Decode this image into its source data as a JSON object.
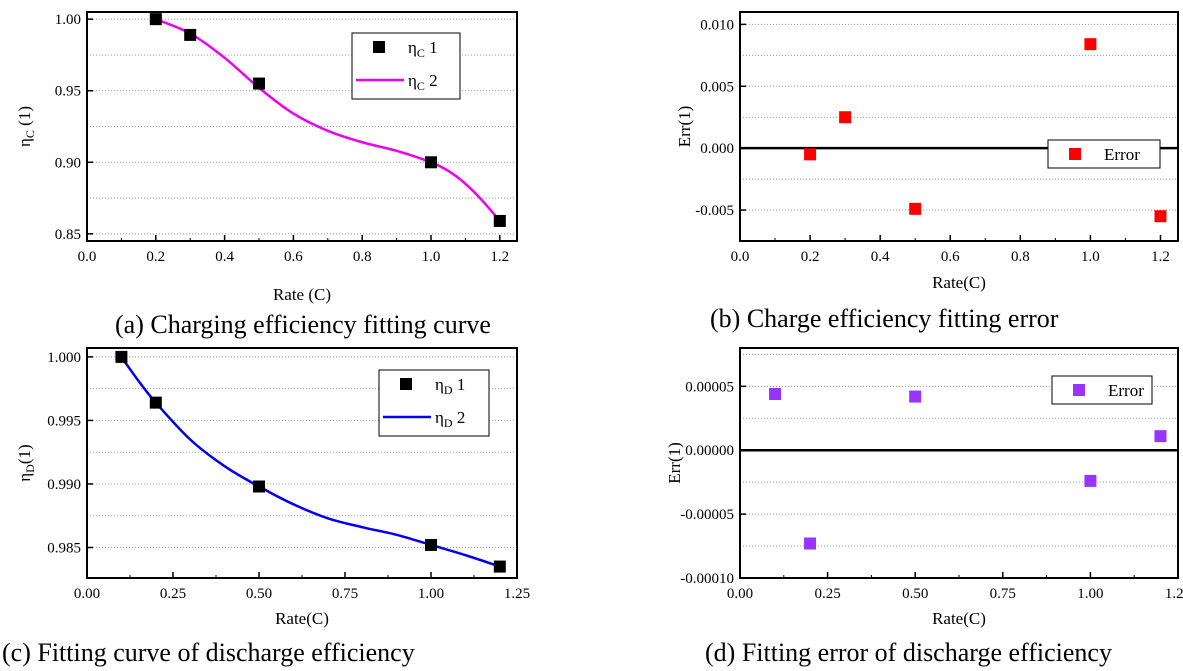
{
  "charts": [
    {
      "caption": "(a) Charging efficiency fitting curve",
      "chart_data": {
        "type": "scatter",
        "title": "",
        "xlabel": "Rate (C)",
        "ylabel_main": "η",
        "ylabel_sub": "C",
        "ylabel_suffix": " (1)",
        "xlim": [
          0.0,
          1.25
        ],
        "ylim": [
          0.845,
          1.005
        ],
        "xticks": [
          "0.0",
          "0.2",
          "0.4",
          "0.6",
          "0.8",
          "1.0",
          "1.2"
        ],
        "xtick_values": [
          0.0,
          0.2,
          0.4,
          0.6,
          0.8,
          1.0,
          1.2
        ],
        "yticks": [
          "0.85",
          "0.90",
          "0.95",
          "1.00"
        ],
        "ytick_values": [
          0.85,
          0.9,
          0.95,
          1.0
        ],
        "grid": "horizontal dotted",
        "legend_position": "top-right",
        "series": [
          {
            "name_main": "η",
            "name_sub": "C",
            "name_suffix": " 1",
            "kind": "markers",
            "color": "#000000",
            "x": [
              0.2,
              0.3,
              0.5,
              1.0,
              1.2
            ],
            "y": [
              1.0,
              0.989,
              0.955,
              0.9,
              0.859
            ]
          },
          {
            "name_main": "η",
            "name_sub": "C",
            "name_suffix": " 2",
            "kind": "line",
            "color": "#ee00ee",
            "x": [
              0.2,
              0.3,
              0.4,
              0.5,
              0.6,
              0.7,
              0.8,
              0.9,
              1.0,
              1.05,
              1.1,
              1.15,
              1.2
            ],
            "y": [
              1.0,
              0.99,
              0.973,
              0.952,
              0.934,
              0.922,
              0.914,
              0.908,
              0.9,
              0.894,
              0.885,
              0.873,
              0.859
            ]
          }
        ]
      }
    },
    {
      "caption": "(b) Charge efficiency fitting error",
      "chart_data": {
        "type": "scatter",
        "title": "",
        "xlabel": "Rate(C)",
        "ylabel_main": "Err(1)",
        "ylabel_sub": "",
        "ylabel_suffix": "",
        "xlim": [
          0.0,
          1.25
        ],
        "ylim": [
          -0.0075,
          0.011
        ],
        "xticks": [
          "0.0",
          "0.2",
          "0.4",
          "0.6",
          "0.8",
          "1.0",
          "1.2"
        ],
        "xtick_values": [
          0.0,
          0.2,
          0.4,
          0.6,
          0.8,
          1.0,
          1.2
        ],
        "yticks": [
          "-0.005",
          "0.000",
          "0.005",
          "0.010"
        ],
        "ytick_values": [
          -0.005,
          0.0,
          0.005,
          0.01
        ],
        "grid": "horizontal dotted",
        "zero_line": true,
        "legend_position": "right",
        "series": [
          {
            "name_main": "Error",
            "name_sub": "",
            "name_suffix": "",
            "kind": "markers",
            "color": "#ff0000",
            "x": [
              0.2,
              0.3,
              0.5,
              1.0,
              1.2
            ],
            "y": [
              -0.0005,
              0.0025,
              -0.0049,
              0.0084,
              -0.0055
            ]
          }
        ]
      }
    },
    {
      "caption": "(c) Fitting curve of discharge efficiency",
      "chart_data": {
        "type": "scatter",
        "title": "",
        "xlabel": "Rate(C)",
        "ylabel_main": "η",
        "ylabel_sub": "D",
        "ylabel_suffix": "(1)",
        "xlim": [
          0.0,
          1.25
        ],
        "ylim": [
          0.9826,
          1.0007
        ],
        "xticks": [
          "0.00",
          "0.25",
          "0.50",
          "0.75",
          "1.00",
          "1.25"
        ],
        "xtick_values": [
          0.0,
          0.25,
          0.5,
          0.75,
          1.0,
          1.25
        ],
        "yticks": [
          "0.985",
          "0.990",
          "0.995",
          "1.000"
        ],
        "ytick_values": [
          0.985,
          0.99,
          0.995,
          1.0
        ],
        "grid": "horizontal dotted",
        "legend_position": "top-right",
        "series": [
          {
            "name_main": "η",
            "name_sub": "D",
            "name_suffix": " 1",
            "kind": "markers",
            "color": "#000000",
            "x": [
              0.1,
              0.2,
              0.5,
              1.0,
              1.2
            ],
            "y": [
              1.0,
              0.9964,
              0.9898,
              0.9852,
              0.9835
            ]
          },
          {
            "name_main": "η",
            "name_sub": "D",
            "name_suffix": " 2",
            "kind": "line",
            "color": "#0000ee",
            "x": [
              0.1,
              0.15,
              0.2,
              0.3,
              0.4,
              0.5,
              0.6,
              0.7,
              0.8,
              0.9,
              1.0,
              1.1,
              1.2
            ],
            "y": [
              1.0,
              0.9981,
              0.9964,
              0.9935,
              0.9914,
              0.9898,
              0.9884,
              0.9873,
              0.9866,
              0.986,
              0.9852,
              0.9844,
              0.9835
            ]
          }
        ]
      }
    },
    {
      "caption": "(d) Fitting error of discharge efficiency",
      "chart_data": {
        "type": "scatter",
        "title": "",
        "xlabel": "Rate(C)",
        "ylabel_main": "Err(1)",
        "ylabel_sub": "",
        "ylabel_suffix": "",
        "xlim": [
          0.0,
          1.25
        ],
        "ylim": [
          -0.0001,
          8e-05
        ],
        "xticks": [
          "0.00",
          "0.25",
          "0.50",
          "0.75",
          "1.00",
          "1.25"
        ],
        "xtick_values": [
          0.0,
          0.25,
          0.5,
          0.75,
          1.0,
          1.25
        ],
        "yticks": [
          "-0.00010",
          "-0.00005",
          "0.00000",
          "0.00005"
        ],
        "ytick_values": [
          -0.0001,
          -5e-05,
          0.0,
          5e-05
        ],
        "grid": "horizontal dotted",
        "zero_line": true,
        "legend_position": "top-right",
        "series": [
          {
            "name_main": "Error",
            "name_sub": "",
            "name_suffix": "",
            "kind": "markers",
            "color": "#9933ff",
            "x": [
              0.1,
              0.2,
              0.5,
              1.0,
              1.2
            ],
            "y": [
              4.4e-05,
              -7.3e-05,
              4.2e-05,
              -2.4e-05,
              1.1e-05
            ]
          }
        ]
      }
    }
  ]
}
